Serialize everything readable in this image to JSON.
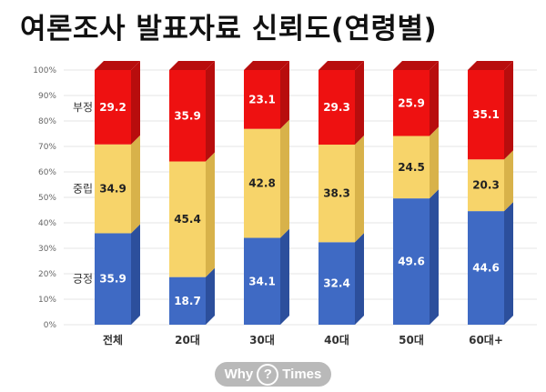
{
  "title": "여론조사 발표자료 신뢰도(연령별)",
  "logo": {
    "left": "Why",
    "mark": "?",
    "right": "Times"
  },
  "chart_data": {
    "type": "bar",
    "stacked": true,
    "title": "여론조사 발표자료 신뢰도(연령별)",
    "categories": [
      "전체",
      "20대",
      "30대",
      "40대",
      "50대",
      "60대+"
    ],
    "series": [
      {
        "name": "긍정",
        "values": [
          35.9,
          18.7,
          34.1,
          32.4,
          49.6,
          44.6
        ],
        "color": "#3f6ac4",
        "side": "#2c4f9c"
      },
      {
        "name": "중립",
        "values": [
          34.9,
          45.4,
          42.8,
          38.3,
          24.5,
          20.3
        ],
        "color": "#f7d46a",
        "side": "#d8b24a"
      },
      {
        "name": "부정",
        "values": [
          29.2,
          35.9,
          23.1,
          29.3,
          25.9,
          35.1
        ],
        "color": "#ee1111",
        "side": "#b80d0d"
      }
    ],
    "yticks": [
      "0%",
      "10%",
      "20%",
      "30%",
      "40%",
      "50%",
      "60%",
      "70%",
      "80%",
      "90%",
      "100%"
    ],
    "ylim": [
      0,
      100
    ],
    "grid": true,
    "legend": "inline-left"
  }
}
